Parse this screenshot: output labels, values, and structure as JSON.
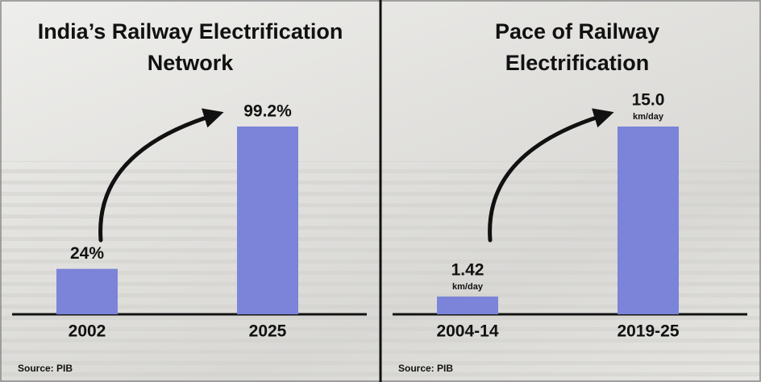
{
  "chart_data": [
    {
      "type": "bar",
      "title": "India’s Railway Electrification Network",
      "categories": [
        "2002",
        "2025"
      ],
      "values": [
        24,
        99.2
      ],
      "value_labels": [
        "24%",
        "99.2%"
      ],
      "color": "#7b84d8",
      "source": "Source: PIB"
    },
    {
      "type": "bar",
      "title": "Pace of Railway Electrification",
      "categories": [
        "2004-14",
        "2019-25"
      ],
      "values": [
        1.42,
        15.0
      ],
      "value_labels": [
        "1.42",
        "15.0"
      ],
      "unit_labels": [
        "km/day",
        "km/day"
      ],
      "color": "#7b84d8",
      "source": "Source: PIB"
    }
  ]
}
